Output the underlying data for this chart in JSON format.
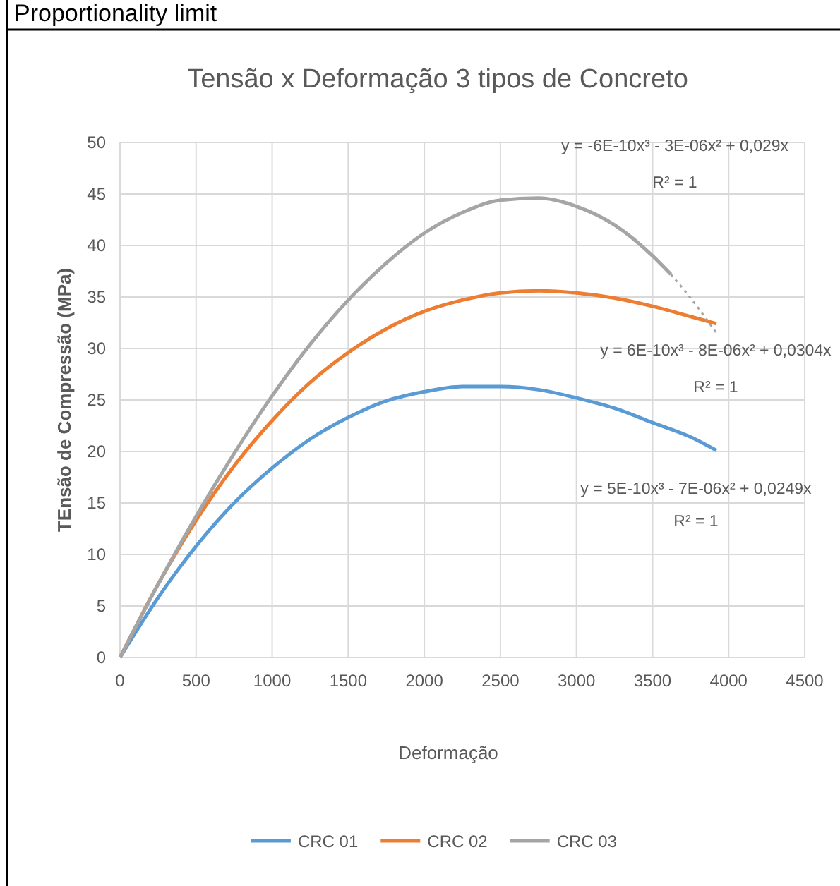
{
  "chart_data": {
    "type": "line",
    "title": "Tensão x Deformação 3 tipos de Concreto",
    "xlabel": "Deformação",
    "ylabel": "TEnsão de Compressão (MPa)",
    "annotations": [
      "Proportionality limit",
      "y = -6E-10x³ - 3E-06x² + 0,029x",
      "R² = 1",
      "y = 6E-10x³ - 8E-06x² + 0,0304x",
      "R² = 1",
      "y = 5E-10x³ - 7E-06x² + 0,0249x",
      "R² = 1"
    ],
    "xlim": [
      0,
      4500
    ],
    "xticks": [
      0,
      500,
      1000,
      1500,
      2000,
      2500,
      3000,
      3500,
      4000,
      4500
    ],
    "ylim": [
      0,
      50
    ],
    "yticks": [
      0,
      5,
      10,
      15,
      20,
      25,
      30,
      35,
      40,
      45,
      50
    ],
    "grid": true,
    "legend": "bottom",
    "marker": "none",
    "series": [
      {
        "name": "CRC 01",
        "color": "#5b9bd5",
        "x": [
          0,
          250,
          500,
          750,
          1000,
          1250,
          1500,
          1750,
          2000,
          2250,
          2500,
          2750,
          3000,
          3250,
          3500,
          3750,
          3920
        ],
        "values": [
          0,
          5.8,
          10.8,
          15.0,
          18.4,
          21.2,
          23.3,
          24.9,
          25.8,
          26.3,
          26.3,
          26.0,
          25.2,
          24.2,
          22.8,
          21.4,
          20.1
        ]
      },
      {
        "name": "CRC 02",
        "color": "#ed7d31",
        "x": [
          0,
          250,
          500,
          750,
          1000,
          1250,
          1500,
          1750,
          2000,
          2250,
          2500,
          2750,
          3000,
          3250,
          3500,
          3750,
          3920
        ],
        "values": [
          0,
          7.1,
          13.3,
          18.6,
          23.0,
          26.7,
          29.6,
          31.9,
          33.6,
          34.7,
          35.4,
          35.6,
          35.4,
          34.9,
          34.1,
          33.1,
          32.4
        ]
      },
      {
        "name": "CRC 03",
        "color": "#a5a5a5",
        "x": [
          0,
          250,
          500,
          750,
          1000,
          1250,
          1500,
          1750,
          2000,
          2250,
          2500,
          2750,
          3000,
          3250,
          3500,
          3620
        ],
        "values": [
          0,
          7.1,
          13.7,
          19.8,
          25.4,
          30.4,
          34.7,
          38.3,
          41.2,
          43.2,
          44.4,
          44.6,
          43.8,
          42.0,
          39.0,
          37.2
        ]
      },
      {
        "type": "line",
        "line_style": "dotted",
        "color": "#a5a5a5",
        "x": [
          3620,
          3750,
          3920
        ],
        "values": [
          37.2,
          34.9,
          31.5
        ]
      }
    ]
  }
}
